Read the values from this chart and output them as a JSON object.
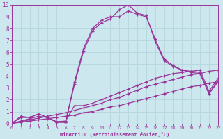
{
  "xlabel": "Windchill (Refroidissement éolien,°C)",
  "xlim": [
    0,
    23
  ],
  "ylim": [
    0,
    10
  ],
  "xticks": [
    0,
    1,
    2,
    3,
    4,
    5,
    6,
    7,
    8,
    9,
    10,
    11,
    12,
    13,
    14,
    15,
    16,
    17,
    18,
    19,
    20,
    21,
    22,
    23
  ],
  "yticks": [
    0,
    1,
    2,
    3,
    4,
    5,
    6,
    7,
    8,
    9,
    10
  ],
  "bg_color": "#cce8ee",
  "line_color": "#993399",
  "grid_color": "#b8d8e0",
  "lines": [
    {
      "x": [
        0,
        1,
        2,
        3,
        4,
        5,
        6,
        7,
        8,
        9,
        10,
        11,
        12,
        13,
        14,
        15,
        16,
        17,
        18,
        19,
        20,
        21,
        22,
        23
      ],
      "y": [
        0,
        0.1,
        0.2,
        0.3,
        0.4,
        0.5,
        0.6,
        0.7,
        0.9,
        1.0,
        1.2,
        1.4,
        1.5,
        1.7,
        1.9,
        2.1,
        2.3,
        2.5,
        2.7,
        2.9,
        3.1,
        3.2,
        3.4,
        3.5
      ]
    },
    {
      "x": [
        0,
        1,
        2,
        3,
        4,
        5,
        6,
        7,
        8,
        9,
        10,
        11,
        12,
        13,
        14,
        15,
        16,
        17,
        18,
        19,
        20,
        21,
        22,
        23
      ],
      "y": [
        0,
        0.15,
        0.3,
        0.45,
        0.6,
        0.75,
        0.9,
        1.1,
        1.3,
        1.5,
        1.7,
        2.0,
        2.2,
        2.5,
        2.8,
        3.1,
        3.3,
        3.5,
        3.7,
        3.9,
        4.1,
        4.2,
        4.4,
        4.5
      ]
    },
    {
      "x": [
        0,
        1,
        2,
        3,
        4,
        5,
        6,
        7,
        8,
        9,
        10,
        11,
        12,
        13,
        14,
        15,
        16,
        17,
        18,
        19,
        20,
        21,
        22,
        23
      ],
      "y": [
        0,
        0.2,
        0.4,
        0.6,
        0.5,
        0.15,
        0.2,
        1.5,
        1.5,
        1.7,
        2.0,
        2.3,
        2.6,
        2.9,
        3.2,
        3.5,
        3.8,
        4.0,
        4.2,
        4.3,
        4.4,
        4.5,
        2.7,
        3.8
      ]
    },
    {
      "x": [
        0,
        1,
        2,
        3,
        4,
        5,
        6,
        7,
        8,
        9,
        10,
        11,
        12,
        13,
        14,
        15,
        16,
        17,
        18,
        19,
        20,
        21,
        22,
        23
      ],
      "y": [
        0,
        0.5,
        0.5,
        0.8,
        0.5,
        0.1,
        0.1,
        3.3,
        6.1,
        7.8,
        8.5,
        8.8,
        9.6,
        10.0,
        9.3,
        9.1,
        6.9,
        5.3,
        4.8,
        4.5,
        4.3,
        4.2,
        2.5,
        3.5
      ]
    },
    {
      "x": [
        0,
        1,
        2,
        3,
        4,
        5,
        6,
        7,
        8,
        9,
        10,
        11,
        12,
        13,
        14,
        15,
        16,
        17,
        18,
        19,
        20,
        21,
        22,
        23
      ],
      "y": [
        0,
        0.6,
        0.5,
        0.8,
        0.5,
        0.1,
        0.1,
        3.5,
        6.3,
        8.0,
        8.7,
        9.0,
        9.0,
        9.5,
        9.2,
        9.0,
        7.1,
        5.4,
        4.9,
        4.5,
        4.4,
        4.3,
        2.5,
        3.6
      ]
    }
  ]
}
